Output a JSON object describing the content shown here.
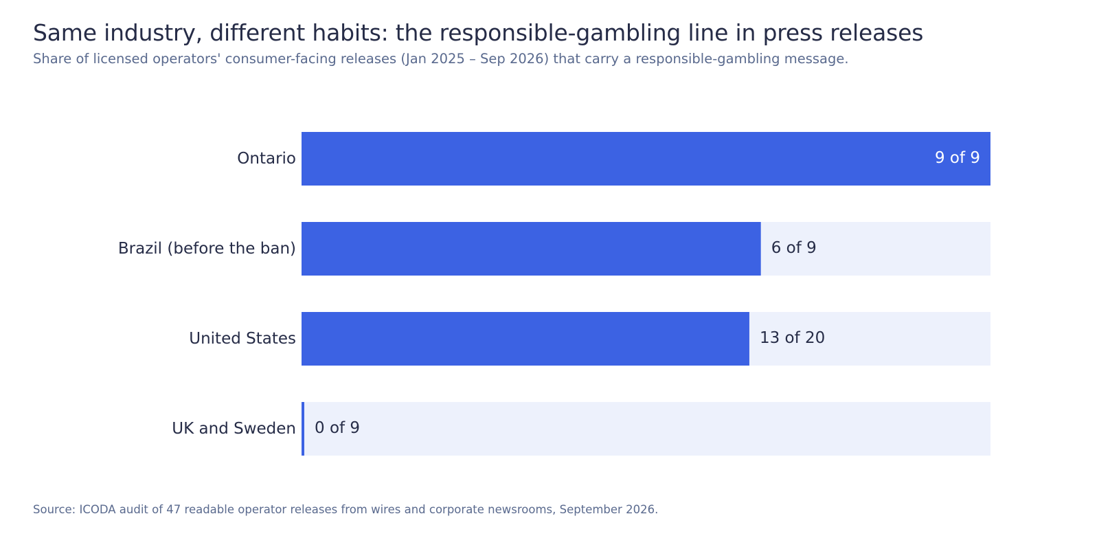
{
  "header": {
    "title": "Same industry, different habits: the responsible-gambling line in press releases",
    "subtitle": "Share of licensed operators' consumer-facing releases (Jan 2025 – Sep 2026) that carry a responsible-gambling message."
  },
  "footer": {
    "source": "Source: ICODA audit of 47 readable operator releases from wires and corporate newsrooms, September 2026."
  },
  "colors": {
    "bar": "#3c62e3",
    "track": "#edf1fc",
    "label": "#262c47",
    "value_inside": "#ffffff",
    "value_outside": "#262c47"
  },
  "chart_data": {
    "type": "bar",
    "orientation": "horizontal",
    "title": "Same industry, different habits: the responsible-gambling line in press releases",
    "subtitle": "Share of licensed operators' consumer-facing releases (Jan 2025 – Sep 2026) that carry a responsible-gambling message.",
    "categories": [
      "Ontario",
      "Brazil (before the ban)",
      "United States",
      "UK and Sweden"
    ],
    "values": [
      1.0,
      0.6667,
      0.65,
      0.0
    ],
    "numerators": [
      9,
      6,
      13,
      0
    ],
    "denominators": [
      9,
      9,
      20,
      9
    ],
    "value_labels": [
      "9 of 9",
      "6 of 9",
      "13 of 20",
      "0 of 9"
    ],
    "xlim": [
      0,
      1
    ],
    "grid": false,
    "legend": "none"
  }
}
